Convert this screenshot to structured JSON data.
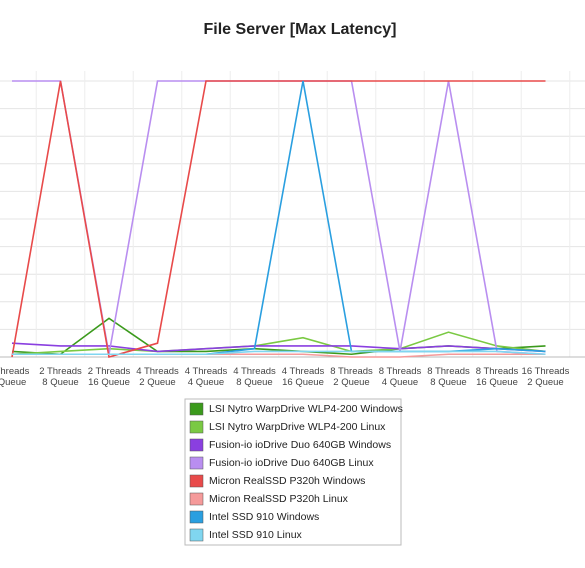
{
  "chart_data": {
    "type": "line",
    "title": "File Server [Max Latency]",
    "categories": [
      "Threads\nQueue",
      "2 Threads\n8 Queue",
      "2 Threads\n16 Queue",
      "4 Threads\n2 Queue",
      "4 Threads\n4 Queue",
      "4 Threads\n8 Queue",
      "4 Threads\n16 Queue",
      "8 Threads\n2 Queue",
      "8 Threads\n4 Queue",
      "8 Threads\n8 Queue",
      "8 Threads\n16 Queue",
      "16 Threads\n2 Queue"
    ],
    "ylim": [
      0,
      100
    ],
    "grid": true,
    "series": [
      {
        "name": "LSI Nytro WarpDrive WLP4-200 Windows",
        "color": "#3b9a1c",
        "values": [
          2,
          1,
          14,
          2,
          2,
          3,
          2,
          1,
          3,
          4,
          3,
          4
        ]
      },
      {
        "name": "LSI Nytro WarpDrive WLP4-200 Linux",
        "color": "#7ac943",
        "values": [
          1,
          2,
          3,
          2,
          3,
          4,
          7,
          2,
          3,
          9,
          4,
          2
        ]
      },
      {
        "name": "Fusion-io ioDrive Duo 640GB Windows",
        "color": "#8a3fe0",
        "values": [
          5,
          4,
          4,
          2,
          3,
          4,
          4,
          4,
          3,
          4,
          3,
          2
        ]
      },
      {
        "name": "Fusion-io ioDrive Duo 640GB Linux",
        "color": "#b98ef0",
        "values": [
          100,
          100,
          1,
          100,
          100,
          100,
          100,
          100,
          2,
          100,
          2,
          1
        ]
      },
      {
        "name": "Micron RealSSD P320h Windows",
        "color": "#e84a4a",
        "values": [
          0,
          100,
          0,
          5,
          100,
          100,
          100,
          100,
          100,
          100,
          100,
          100
        ]
      },
      {
        "name": "Micron RealSSD P320h Linux",
        "color": "#f59a9a",
        "values": [
          1,
          1,
          1,
          1,
          1,
          1,
          1,
          0,
          0,
          1,
          1,
          1
        ]
      },
      {
        "name": "Intel SSD 910 Windows",
        "color": "#2a9fe0",
        "values": [
          1,
          1,
          1,
          1,
          1,
          3,
          100,
          2,
          2,
          2,
          3,
          2
        ]
      },
      {
        "name": "Intel SSD 910 Linux",
        "color": "#80d6f0",
        "values": [
          1,
          1,
          1,
          1,
          1,
          2,
          2,
          2,
          2,
          2,
          2,
          1
        ]
      }
    ]
  }
}
